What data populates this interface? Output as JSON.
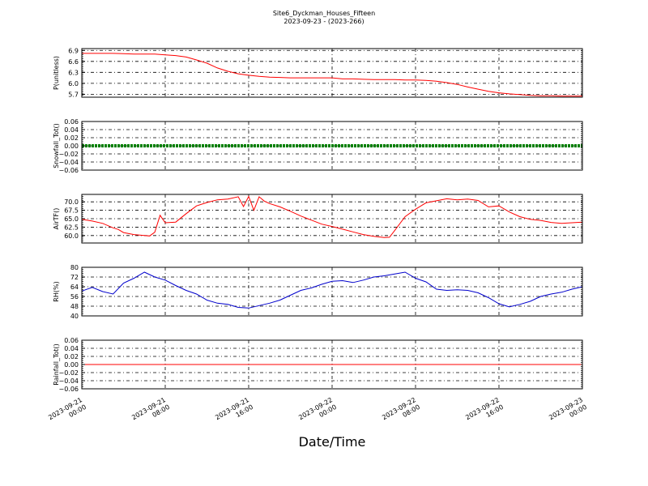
{
  "title": {
    "line1": "Site6_Dyckman_Houses_Fifteen",
    "line2": "2023-09-23 - (2023-266)"
  },
  "xlabel": "Date/Time",
  "chart_data": {
    "type": "line",
    "x_ticks": [
      {
        "line1": "2023-09-21",
        "line2": "00:00"
      },
      {
        "line1": "2023-09-21",
        "line2": "08:00"
      },
      {
        "line1": "2023-09-21",
        "line2": "16:00"
      },
      {
        "line1": "2023-09-22",
        "line2": "00:00"
      },
      {
        "line1": "2023-09-22",
        "line2": "08:00"
      },
      {
        "line1": "2023-09-22",
        "line2": "16:00"
      },
      {
        "line1": "2023-09-23",
        "line2": "00:00"
      }
    ],
    "x_range_hours": [
      0,
      48
    ],
    "panels": [
      {
        "ylabel": "P(unitless)",
        "color": "#ff0000",
        "ylim": [
          5.62,
          6.95
        ],
        "yticks": [
          "6.9",
          "6.6",
          "6.3",
          "6.0",
          "5.7"
        ],
        "ytick_values": [
          6.9,
          6.6,
          6.3,
          6.0,
          5.7
        ],
        "x": [
          0,
          1,
          2,
          3,
          4,
          5,
          6,
          7,
          8,
          9,
          10,
          11,
          12,
          13,
          14,
          15,
          16,
          17,
          18,
          19,
          20,
          21,
          22,
          23,
          24,
          25,
          26,
          27,
          28,
          29,
          30,
          31,
          32,
          33,
          34,
          35,
          36,
          37,
          38,
          39,
          40,
          41,
          42,
          43,
          44,
          45,
          46,
          47,
          48
        ],
        "values": [
          6.82,
          6.82,
          6.82,
          6.82,
          6.81,
          6.8,
          6.8,
          6.8,
          6.78,
          6.76,
          6.72,
          6.64,
          6.55,
          6.42,
          6.33,
          6.26,
          6.22,
          6.19,
          6.17,
          6.16,
          6.15,
          6.15,
          6.15,
          6.15,
          6.15,
          6.12,
          6.12,
          6.11,
          6.1,
          6.1,
          6.1,
          6.09,
          6.09,
          6.08,
          6.06,
          6.02,
          5.97,
          5.9,
          5.84,
          5.78,
          5.74,
          5.71,
          5.69,
          5.67,
          5.66,
          5.66,
          5.65,
          5.65,
          5.65
        ]
      },
      {
        "ylabel": "Snowfall_Tot()",
        "color": "#008000",
        "ylim": [
          -0.06,
          0.06
        ],
        "yticks": [
          "0.06",
          "0.04",
          "0.02",
          "0.00",
          "−0.02",
          "−0.04",
          "−0.06"
        ],
        "ytick_values": [
          0.06,
          0.04,
          0.02,
          0.0,
          -0.02,
          -0.04,
          -0.06
        ],
        "x": [
          0,
          48
        ],
        "values": [
          0.0,
          0.0
        ],
        "line_style": "thick-dots"
      },
      {
        "ylabel": "AirTF()",
        "color": "#ff0000",
        "ylim": [
          57.8,
          72.2
        ],
        "yticks": [
          "70.0",
          "67.5",
          "65.0",
          "62.5",
          "60.0"
        ],
        "ytick_values": [
          70.0,
          67.5,
          65.0,
          62.5,
          60.0
        ],
        "x": [
          0,
          1,
          2,
          3,
          3.5,
          4,
          5,
          6,
          6.5,
          7,
          7.5,
          8,
          9,
          10,
          11,
          12,
          13,
          14,
          15,
          15.5,
          16,
          16.5,
          17,
          17.5,
          18,
          19,
          20,
          21,
          22,
          23,
          24,
          25,
          26,
          27,
          28,
          29,
          29.5,
          30,
          31,
          32,
          33,
          34,
          35,
          36,
          37,
          38,
          39,
          40,
          41,
          42,
          43,
          44,
          45,
          46,
          47,
          48
        ],
        "values": [
          64.8,
          64.3,
          63.6,
          62.3,
          61.8,
          60.9,
          60.3,
          60.0,
          59.9,
          61.0,
          66.0,
          63.8,
          64.0,
          66.5,
          68.8,
          69.8,
          70.6,
          70.8,
          71.5,
          68.6,
          71.6,
          67.5,
          71.5,
          70.2,
          69.5,
          68.5,
          67.2,
          65.8,
          64.6,
          63.4,
          62.7,
          61.9,
          61.1,
          60.3,
          59.8,
          59.4,
          59.5,
          61.5,
          65.6,
          67.8,
          69.7,
          70.3,
          70.9,
          70.6,
          70.8,
          70.4,
          68.5,
          68.8,
          67.0,
          65.6,
          64.8,
          64.5,
          63.9,
          63.6,
          63.8,
          64.0
        ]
      },
      {
        "ylabel": "RH(%)",
        "color": "#0000cc",
        "ylim": [
          40,
          80
        ],
        "yticks": [
          "80",
          "72",
          "64",
          "56",
          "48",
          "40"
        ],
        "ytick_values": [
          80,
          72,
          64,
          56,
          48,
          40
        ],
        "x": [
          0,
          1,
          2,
          3,
          4,
          5,
          6,
          7,
          8,
          9,
          10,
          11,
          12,
          13,
          14,
          15,
          16,
          17,
          18,
          19,
          20,
          21,
          22,
          23,
          24,
          25,
          26,
          27,
          28,
          29,
          30,
          31,
          32,
          33,
          34,
          35,
          36,
          37,
          38,
          39,
          40,
          41,
          42,
          43,
          44,
          45,
          46,
          47,
          48
        ],
        "values": [
          60.5,
          63.5,
          60.0,
          58.0,
          67.0,
          71.0,
          76.0,
          72.0,
          69.5,
          65.0,
          61.0,
          58.0,
          53.0,
          50.5,
          49.5,
          47.0,
          46.5,
          48.5,
          50.5,
          53.0,
          57.0,
          61.0,
          63.0,
          66.0,
          68.5,
          69.0,
          67.5,
          69.5,
          72.0,
          73.0,
          74.5,
          76.0,
          71.0,
          68.0,
          62.0,
          61.0,
          61.5,
          61.0,
          59.0,
          55.0,
          50.0,
          47.5,
          49.5,
          52.0,
          56.0,
          58.0,
          59.5,
          62.0,
          64.0
        ]
      },
      {
        "ylabel": "Rainfall_Tot()",
        "color": "#ff0000",
        "ylim": [
          -0.06,
          0.06
        ],
        "yticks": [
          "0.06",
          "0.04",
          "0.02",
          "0.00",
          "−0.02",
          "−0.04",
          "−0.06"
        ],
        "ytick_values": [
          0.06,
          0.04,
          0.02,
          0.0,
          -0.02,
          -0.04,
          -0.06
        ],
        "x": [
          0,
          48
        ],
        "values": [
          0.0,
          0.0
        ]
      }
    ],
    "grid": true,
    "grid_style": "dash-dot"
  }
}
